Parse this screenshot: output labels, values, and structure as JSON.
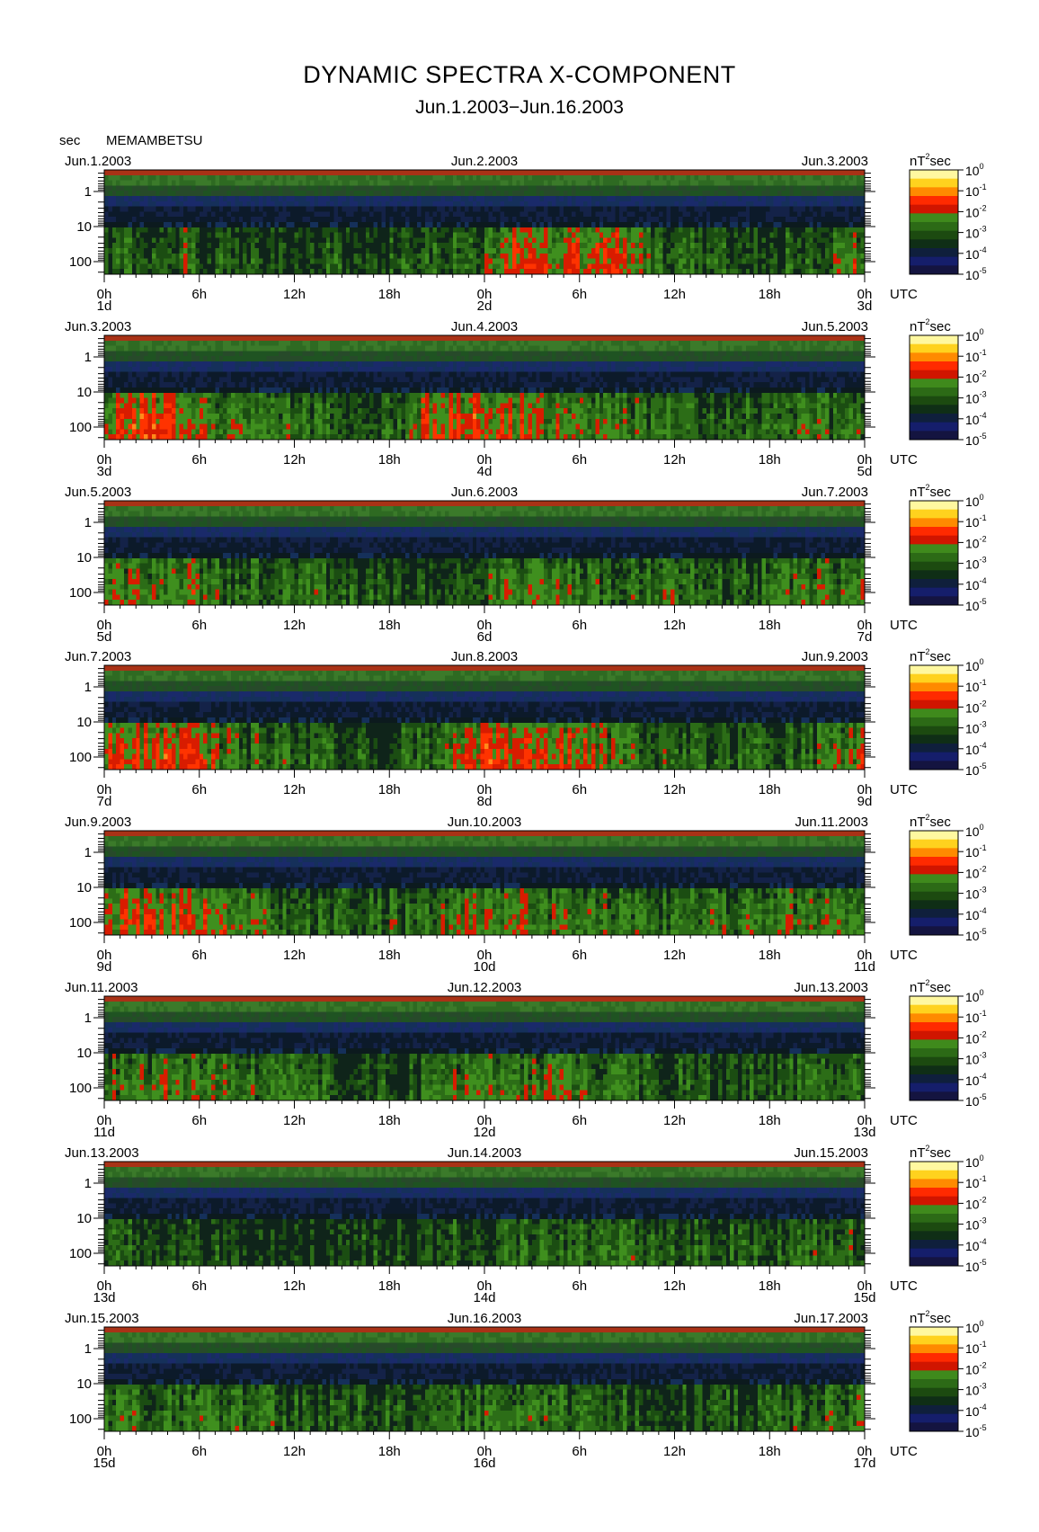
{
  "title": "DYNAMIC SPECTRA X-COMPONENT",
  "subtitle": "Jun.1.2003−Jun.16.2003",
  "unit_label": "sec",
  "station": "MEMAMBETSU",
  "colorbar": {
    "unit_base": "nT",
    "unit_exp": "2",
    "unit_tail": "sec",
    "labels": [
      {
        "base": "10",
        "exp": "0"
      },
      {
        "base": "10",
        "exp": "-1"
      },
      {
        "base": "10",
        "exp": "-2"
      },
      {
        "base": "10",
        "exp": "-3"
      },
      {
        "base": "10",
        "exp": "-4"
      },
      {
        "base": "10",
        "exp": "-5"
      }
    ],
    "colors": [
      "#fff8a0",
      "#ffd21e",
      "#ff8a00",
      "#ff2a00",
      "#d01500",
      "#3f8a1c",
      "#2c6a16",
      "#1c4a10",
      "#0f2e16",
      "#0f1f3c",
      "#151e6b",
      "#141440"
    ]
  },
  "chart_data": {
    "type": "heatmap",
    "quantity": "power spectral density, X-component",
    "y_axis": {
      "label": "sec",
      "ticks": [
        "1",
        "10",
        "100"
      ],
      "scale": "log",
      "range_sec": [
        0.2,
        200
      ]
    },
    "x_ticks": [
      "0h",
      "6h",
      "12h",
      "18h",
      "0h",
      "6h",
      "12h",
      "18h",
      "0h"
    ],
    "x_unit": "UTC",
    "color_scale": {
      "min": 1e-05,
      "max": 1,
      "scale": "log"
    },
    "panels": [
      {
        "left_date": "Jun.1.2003",
        "mid_date": "Jun.2.2003",
        "right_date": "Jun.3.2003",
        "day_labels": [
          "1d",
          "2d",
          "3d"
        ],
        "activity": [
          0.35,
          0.4,
          0.45,
          0.4,
          0.35,
          0.5,
          0.3,
          0.35,
          0.3,
          0.35,
          0.3,
          0.3,
          0.25,
          0.25,
          0.3,
          0.3,
          0.25,
          0.25,
          0.3,
          0.35,
          0.35,
          0.3,
          0.35,
          0.4,
          0.6,
          0.75,
          0.8,
          0.75,
          0.7,
          0.7,
          0.65,
          0.7,
          0.75,
          0.65,
          0.5,
          0.45,
          0.4,
          0.35,
          0.35,
          0.3,
          0.35,
          0.3,
          0.3,
          0.35,
          0.4,
          0.35,
          0.45,
          0.6
        ]
      },
      {
        "left_date": "Jun.3.2003",
        "mid_date": "Jun.4.2003",
        "right_date": "Jun.5.2003",
        "day_labels": [
          "3d",
          "4d",
          "5d"
        ],
        "activity": [
          0.75,
          0.8,
          0.8,
          0.8,
          0.75,
          0.75,
          0.6,
          0.5,
          0.45,
          0.45,
          0.4,
          0.45,
          0.4,
          0.35,
          0.35,
          0.3,
          0.4,
          0.35,
          0.45,
          0.6,
          0.7,
          0.75,
          0.8,
          0.8,
          0.8,
          0.75,
          0.7,
          0.6,
          0.55,
          0.55,
          0.55,
          0.5,
          0.55,
          0.5,
          0.45,
          0.45,
          0.45,
          0.4,
          0.45,
          0.4,
          0.45,
          0.4,
          0.45,
          0.4,
          0.45,
          0.4,
          0.45,
          0.45
        ]
      },
      {
        "left_date": "Jun.5.2003",
        "mid_date": "Jun.6.2003",
        "right_date": "Jun.7.2003",
        "day_labels": [
          "5d",
          "6d",
          "7d"
        ],
        "activity": [
          0.55,
          0.55,
          0.5,
          0.5,
          0.45,
          0.55,
          0.5,
          0.45,
          0.4,
          0.4,
          0.35,
          0.4,
          0.45,
          0.4,
          0.35,
          0.35,
          0.3,
          0.3,
          0.3,
          0.3,
          0.3,
          0.35,
          0.4,
          0.4,
          0.45,
          0.5,
          0.5,
          0.55,
          0.55,
          0.55,
          0.45,
          0.45,
          0.4,
          0.4,
          0.4,
          0.45,
          0.4,
          0.4,
          0.35,
          0.35,
          0.4,
          0.4,
          0.45,
          0.5,
          0.5,
          0.55,
          0.55,
          0.6
        ]
      },
      {
        "left_date": "Jun.7.2003",
        "mid_date": "Jun.8.2003",
        "right_date": "Jun.9.2003",
        "day_labels": [
          "7d",
          "8d",
          "9d"
        ],
        "activity": [
          0.75,
          0.75,
          0.75,
          0.75,
          0.7,
          0.7,
          0.65,
          0.55,
          0.5,
          0.45,
          0.4,
          0.4,
          0.35,
          0.35,
          0.3,
          0.35,
          0.3,
          0.3,
          0.35,
          0.4,
          0.45,
          0.6,
          0.75,
          0.75,
          0.8,
          0.8,
          0.8,
          0.75,
          0.7,
          0.7,
          0.65,
          0.6,
          0.55,
          0.5,
          0.45,
          0.45,
          0.4,
          0.35,
          0.35,
          0.3,
          0.35,
          0.35,
          0.35,
          0.4,
          0.4,
          0.45,
          0.5,
          0.6
        ]
      },
      {
        "left_date": "Jun.9.2003",
        "mid_date": "Jun.10.2003",
        "right_date": "Jun.11.2003",
        "day_labels": [
          "9d",
          "10d",
          "11d"
        ],
        "activity": [
          0.65,
          0.7,
          0.7,
          0.7,
          0.7,
          0.7,
          0.7,
          0.7,
          0.6,
          0.5,
          0.45,
          0.45,
          0.4,
          0.4,
          0.4,
          0.4,
          0.35,
          0.35,
          0.4,
          0.4,
          0.4,
          0.5,
          0.6,
          0.6,
          0.55,
          0.55,
          0.6,
          0.55,
          0.55,
          0.55,
          0.6,
          0.55,
          0.5,
          0.45,
          0.45,
          0.4,
          0.4,
          0.4,
          0.45,
          0.45,
          0.45,
          0.5,
          0.5,
          0.5,
          0.5,
          0.55,
          0.55,
          0.55
        ]
      },
      {
        "left_date": "Jun.11.2003",
        "mid_date": "Jun.12.2003",
        "right_date": "Jun.13.2003",
        "day_labels": [
          "11d",
          "12d",
          "13d"
        ],
        "activity": [
          0.5,
          0.55,
          0.55,
          0.55,
          0.55,
          0.55,
          0.55,
          0.5,
          0.45,
          0.45,
          0.45,
          0.4,
          0.35,
          0.3,
          0.3,
          0.3,
          0.3,
          0.3,
          0.3,
          0.3,
          0.4,
          0.45,
          0.55,
          0.55,
          0.55,
          0.55,
          0.55,
          0.55,
          0.55,
          0.55,
          0.5,
          0.45,
          0.4,
          0.35,
          0.3,
          0.3,
          0.3,
          0.3,
          0.3,
          0.3,
          0.3,
          0.3,
          0.35,
          0.35,
          0.35,
          0.4,
          0.45,
          0.45
        ]
      },
      {
        "left_date": "Jun.13.2003",
        "mid_date": "Jun.14.2003",
        "right_date": "Jun.15.2003",
        "day_labels": [
          "13d",
          "14d",
          "15d"
        ],
        "activity": [
          0.35,
          0.35,
          0.3,
          0.3,
          0.3,
          0.3,
          0.25,
          0.25,
          0.25,
          0.25,
          0.2,
          0.2,
          0.2,
          0.2,
          0.2,
          0.25,
          0.25,
          0.3,
          0.3,
          0.3,
          0.3,
          0.35,
          0.35,
          0.35,
          0.35,
          0.35,
          0.4,
          0.4,
          0.4,
          0.4,
          0.4,
          0.4,
          0.4,
          0.4,
          0.35,
          0.35,
          0.35,
          0.35,
          0.35,
          0.35,
          0.35,
          0.4,
          0.4,
          0.4,
          0.45,
          0.45,
          0.45,
          0.45
        ]
      },
      {
        "left_date": "Jun.15.2003",
        "mid_date": "Jun.16.2003",
        "right_date": "Jun.17.2003",
        "day_labels": [
          "15d",
          "16d",
          "17d"
        ],
        "activity": [
          0.45,
          0.45,
          0.45,
          0.45,
          0.45,
          0.45,
          0.4,
          0.45,
          0.45,
          0.4,
          0.4,
          0.35,
          0.35,
          0.3,
          0.3,
          0.3,
          0.35,
          0.35,
          0.35,
          0.35,
          0.35,
          0.4,
          0.4,
          0.4,
          0.45,
          0.45,
          0.5,
          0.5,
          0.45,
          0.45,
          0.4,
          0.4,
          0.35,
          0.35,
          0.3,
          0.3,
          0.3,
          0.3,
          0.3,
          0.3,
          0.3,
          0.35,
          0.4,
          0.4,
          0.45,
          0.45,
          0.5,
          0.55
        ]
      }
    ]
  }
}
